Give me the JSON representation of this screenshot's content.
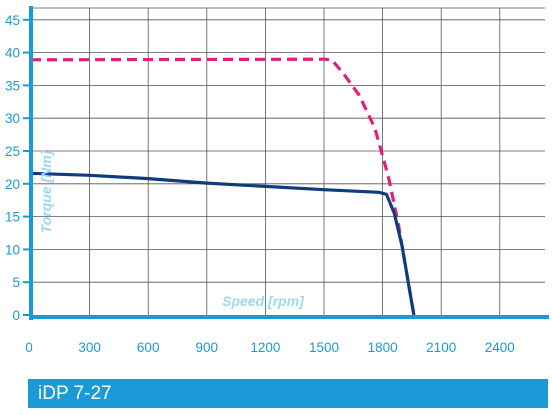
{
  "footer": {
    "model_label": "iDP 7-27"
  },
  "chart_data": {
    "type": "line",
    "title": "",
    "xlabel": "Speed [rpm]",
    "ylabel": "Torque [Nm]",
    "xlim": [
      0,
      2700
    ],
    "ylim": [
      0,
      46
    ],
    "x_ticks": [
      0,
      300,
      600,
      900,
      1200,
      1500,
      1800,
      2100,
      2400
    ],
    "y_ticks": [
      0,
      5,
      10,
      15,
      20,
      25,
      30,
      35,
      40,
      45
    ],
    "grid": true,
    "legend": "none",
    "series": [
      {
        "style": "dashed",
        "color": "#e0217a",
        "points": [
          [
            0,
            38.9
          ],
          [
            1500,
            39.0
          ],
          [
            1540,
            38.9
          ],
          [
            1600,
            36.8
          ],
          [
            1680,
            33.5
          ],
          [
            1760,
            28.5
          ],
          [
            1830,
            21.0
          ],
          [
            1880,
            14.0
          ],
          [
            1920,
            7.0
          ],
          [
            1960,
            0
          ]
        ]
      },
      {
        "style": "solid",
        "color": "#0d3d7c",
        "points": [
          [
            0,
            21.6
          ],
          [
            300,
            21.3
          ],
          [
            600,
            20.8
          ],
          [
            900,
            20.1
          ],
          [
            1200,
            19.6
          ],
          [
            1500,
            19.1
          ],
          [
            1780,
            18.7
          ],
          [
            1820,
            18.4
          ],
          [
            1860,
            15.5
          ],
          [
            1900,
            10.5
          ],
          [
            1940,
            3.5
          ],
          [
            1960,
            0
          ]
        ]
      }
    ]
  }
}
